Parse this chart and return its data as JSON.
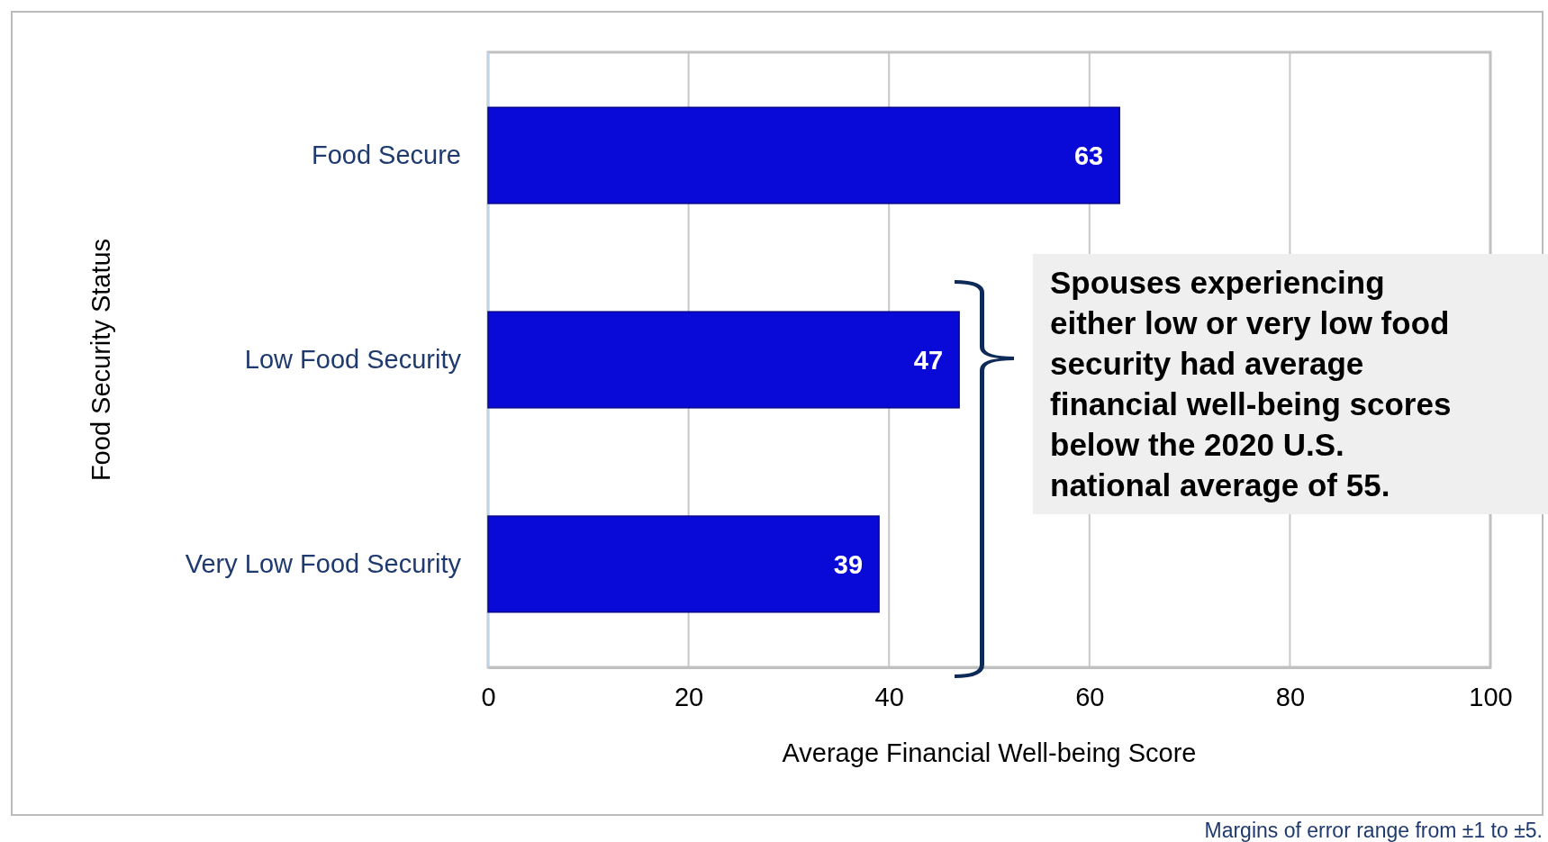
{
  "chart_data": {
    "type": "bar",
    "orientation": "horizontal",
    "categories": [
      "Food Secure",
      "Low Food Security",
      "Very Low Food Security"
    ],
    "values": [
      63,
      47,
      39
    ],
    "color": "#0a0ad8",
    "data_labels": true,
    "xlim": [
      0,
      100
    ],
    "xticks": [
      0,
      20,
      40,
      60,
      80,
      100
    ],
    "xlabel": "Average Financial Well-being Score",
    "ylabel": "Food Security Status",
    "grid": "x",
    "annotations": [
      "Spouses experiencing either low or very low food security had average financial well-being scores below the 2020 U.S. national average of 55.",
      "Margins of error range from ±1 to ±5."
    ]
  }
}
